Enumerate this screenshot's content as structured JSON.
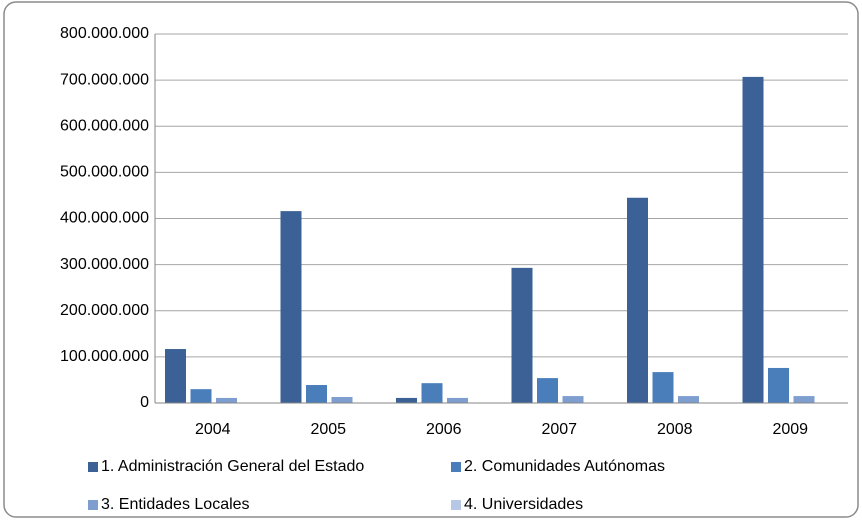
{
  "chart_data": {
    "type": "bar",
    "categories": [
      "2004",
      "2005",
      "2006",
      "2007",
      "2008",
      "2009"
    ],
    "series": [
      {
        "name": "1. Administración General del Estado",
        "color": "#3b6196",
        "values": [
          117000000,
          416000000,
          11000000,
          293000000,
          445000000,
          707000000
        ]
      },
      {
        "name": "2. Comunidades Autónomas",
        "color": "#4a7ebb",
        "values": [
          30000000,
          39000000,
          43000000,
          54000000,
          67000000,
          76000000
        ]
      },
      {
        "name": "3. Entidades Locales",
        "color": "#7e9ed0",
        "values": [
          11000000,
          13000000,
          11000000,
          15000000,
          15000000,
          15000000
        ]
      },
      {
        "name": "4. Universidades",
        "color": "#b7c8e6",
        "values": [
          0,
          0,
          0,
          0,
          0,
          0
        ]
      }
    ],
    "ylim": [
      0,
      800000000
    ],
    "yticks": [
      0,
      {
        "value": 100000000,
        "label": "100.000.000"
      },
      {
        "value": 200000000,
        "label": "200.000.000"
      },
      {
        "value": 300000000,
        "label": "300.000.000"
      },
      {
        "value": 400000000,
        "label": "400.000.000"
      },
      {
        "value": 500000000,
        "label": "500.000.000"
      },
      {
        "value": 600000000,
        "label": "600.000.000"
      },
      {
        "value": 700000000,
        "label": "700.000.000"
      },
      {
        "value": 800000000,
        "label": "800.000.000"
      }
    ],
    "grid": true
  }
}
